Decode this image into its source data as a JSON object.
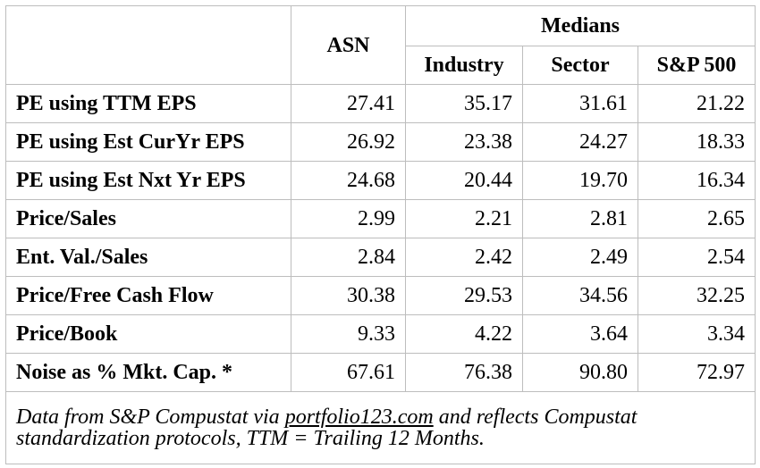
{
  "header": {
    "ticker": "ASN",
    "group_title": "Medians",
    "columns": [
      "Industry",
      "Sector",
      "S&P 500"
    ]
  },
  "rows": [
    {
      "label": "PE using TTM EPS",
      "values": [
        "27.41",
        "35.17",
        "31.61",
        "21.22"
      ]
    },
    {
      "label": "PE using Est CurYr EPS",
      "values": [
        "26.92",
        "23.38",
        "24.27",
        "18.33"
      ]
    },
    {
      "label": "PE using Est Nxt Yr EPS",
      "values": [
        "24.68",
        "20.44",
        "19.70",
        "16.34"
      ]
    },
    {
      "label": "Price/Sales",
      "values": [
        "2.99",
        "2.21",
        "2.81",
        "2.65"
      ]
    },
    {
      "label": "Ent. Val./Sales",
      "values": [
        "2.84",
        "2.42",
        "2.49",
        "2.54"
      ]
    },
    {
      "label": "Price/Free Cash Flow",
      "values": [
        "30.38",
        "29.53",
        "34.56",
        "32.25"
      ]
    },
    {
      "label": "Price/Book",
      "values": [
        "9.33",
        "4.22",
        "3.64",
        "3.34"
      ]
    },
    {
      "label": "Noise as % Mkt. Cap. *",
      "values": [
        "67.61",
        "76.38",
        "90.80",
        "72.97"
      ]
    }
  ],
  "footnote": {
    "prefix": "Data from S&P Compustat via ",
    "link_text": "portfolio123.com",
    "suffix": " and reflects Compustat standardization protocols, TTM = Trailing 12 Months."
  }
}
